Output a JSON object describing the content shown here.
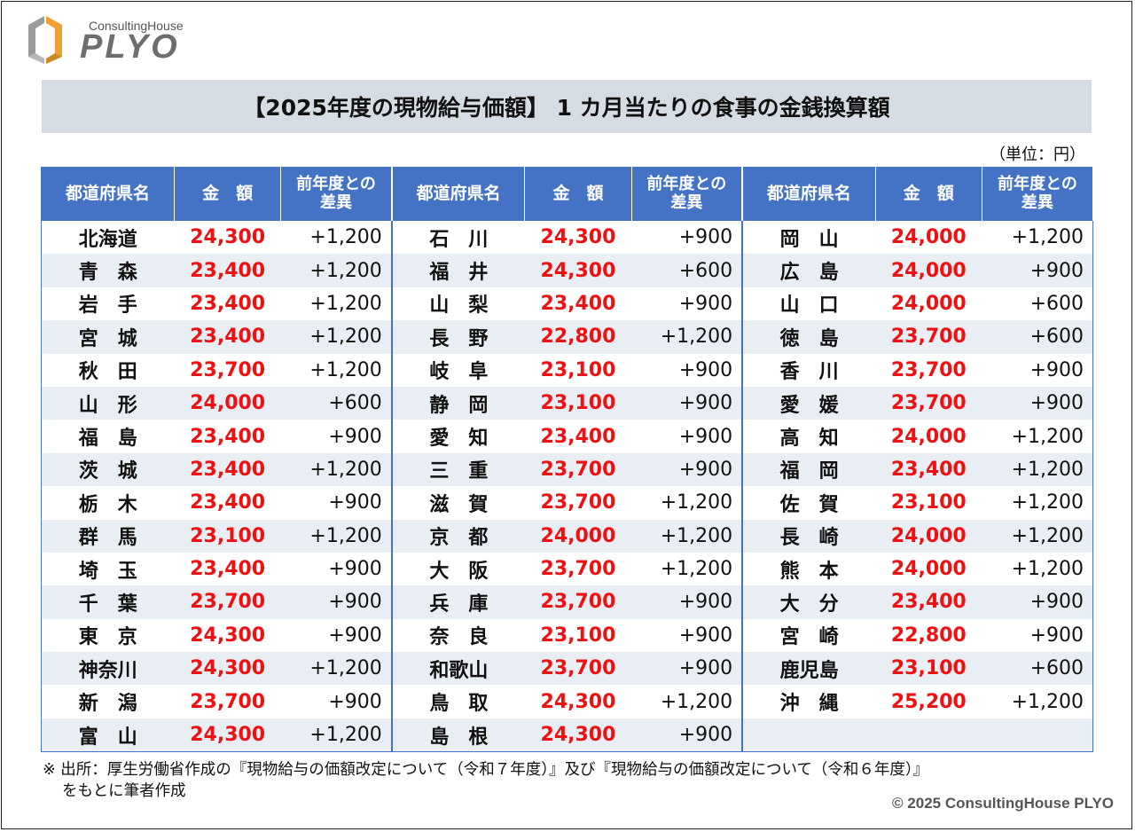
{
  "logo": {
    "small": "ConsultingHouse",
    "big": "PLYO"
  },
  "title": "【2025年度の現物給与価額】 1 カ月当たりの食事の金銭換算額",
  "unit": "（単位：円）",
  "headers": {
    "prefecture": "都道府県名",
    "amount": "金　額",
    "diff_line1": "前年度との",
    "diff_line2": "差異"
  },
  "rows": [
    [
      {
        "p": "北海道",
        "a": "24,300",
        "d": "+1,200"
      },
      {
        "p": "石　川",
        "a": "24,300",
        "d": "+900"
      },
      {
        "p": "岡　山",
        "a": "24,000",
        "d": "+1,200"
      }
    ],
    [
      {
        "p": "青　森",
        "a": "23,400",
        "d": "+1,200"
      },
      {
        "p": "福　井",
        "a": "24,300",
        "d": "+600"
      },
      {
        "p": "広　島",
        "a": "24,000",
        "d": "+900"
      }
    ],
    [
      {
        "p": "岩　手",
        "a": "23,400",
        "d": "+1,200"
      },
      {
        "p": "山　梨",
        "a": "23,400",
        "d": "+900"
      },
      {
        "p": "山　口",
        "a": "24,000",
        "d": "+600"
      }
    ],
    [
      {
        "p": "宮　城",
        "a": "23,400",
        "d": "+1,200"
      },
      {
        "p": "長　野",
        "a": "22,800",
        "d": "+1,200"
      },
      {
        "p": "徳　島",
        "a": "23,700",
        "d": "+600"
      }
    ],
    [
      {
        "p": "秋　田",
        "a": "23,700",
        "d": "+1,200"
      },
      {
        "p": "岐　阜",
        "a": "23,100",
        "d": "+900"
      },
      {
        "p": "香　川",
        "a": "23,700",
        "d": "+900"
      }
    ],
    [
      {
        "p": "山　形",
        "a": "24,000",
        "d": "+600"
      },
      {
        "p": "静　岡",
        "a": "23,100",
        "d": "+900"
      },
      {
        "p": "愛　媛",
        "a": "23,700",
        "d": "+900"
      }
    ],
    [
      {
        "p": "福　島",
        "a": "23,400",
        "d": "+900"
      },
      {
        "p": "愛　知",
        "a": "23,400",
        "d": "+900"
      },
      {
        "p": "高　知",
        "a": "24,000",
        "d": "+1,200"
      }
    ],
    [
      {
        "p": "茨　城",
        "a": "23,400",
        "d": "+1,200"
      },
      {
        "p": "三　重",
        "a": "23,700",
        "d": "+900"
      },
      {
        "p": "福　岡",
        "a": "23,400",
        "d": "+1,200"
      }
    ],
    [
      {
        "p": "栃　木",
        "a": "23,400",
        "d": "+900"
      },
      {
        "p": "滋　賀",
        "a": "23,700",
        "d": "+1,200"
      },
      {
        "p": "佐　賀",
        "a": "23,100",
        "d": "+1,200"
      }
    ],
    [
      {
        "p": "群　馬",
        "a": "23,100",
        "d": "+1,200"
      },
      {
        "p": "京　都",
        "a": "24,000",
        "d": "+1,200"
      },
      {
        "p": "長　崎",
        "a": "24,000",
        "d": "+1,200"
      }
    ],
    [
      {
        "p": "埼　玉",
        "a": "23,400",
        "d": "+900"
      },
      {
        "p": "大　阪",
        "a": "23,700",
        "d": "+1,200"
      },
      {
        "p": "熊　本",
        "a": "24,000",
        "d": "+1,200"
      }
    ],
    [
      {
        "p": "千　葉",
        "a": "23,700",
        "d": "+900"
      },
      {
        "p": "兵　庫",
        "a": "23,700",
        "d": "+900"
      },
      {
        "p": "大　分",
        "a": "23,400",
        "d": "+900"
      }
    ],
    [
      {
        "p": "東　京",
        "a": "24,300",
        "d": "+900"
      },
      {
        "p": "奈　良",
        "a": "23,100",
        "d": "+900"
      },
      {
        "p": "宮　崎",
        "a": "22,800",
        "d": "+900"
      }
    ],
    [
      {
        "p": "神奈川",
        "a": "24,300",
        "d": "+1,200"
      },
      {
        "p": "和歌山",
        "a": "23,700",
        "d": "+900"
      },
      {
        "p": "鹿児島",
        "a": "23,100",
        "d": "+600"
      }
    ],
    [
      {
        "p": "新　潟",
        "a": "23,700",
        "d": "+900"
      },
      {
        "p": "鳥　取",
        "a": "24,300",
        "d": "+1,200"
      },
      {
        "p": "沖　縄",
        "a": "25,200",
        "d": "+1,200"
      }
    ],
    [
      {
        "p": "富　山",
        "a": "24,300",
        "d": "+1,200"
      },
      {
        "p": "島　根",
        "a": "24,300",
        "d": "+900"
      },
      {
        "p": "",
        "a": "",
        "d": ""
      }
    ]
  ],
  "note_line1": "※ 出所：厚生労働省作成の『現物給与の価額改定について（令和７年度）』及び『現物給与の価額改定について（令和６年度）』",
  "note_line2": "をもとに筆者作成",
  "copyright": "© 2025 ConsultingHouse PLYO",
  "colors": {
    "header_bg": "#4472c4",
    "stripe": "#e9edf4",
    "amount": "#ee1111",
    "title_bg": "#d6dce4",
    "logo_orange": "#f0a030",
    "logo_gray": "#6d6e70"
  }
}
